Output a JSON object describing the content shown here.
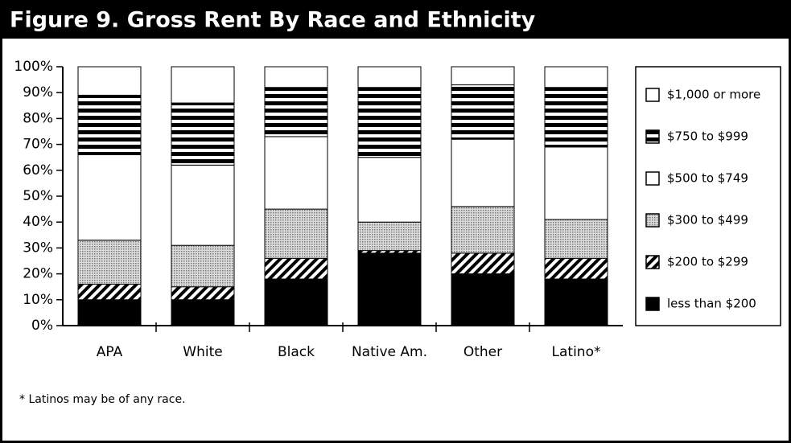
{
  "chart_data": {
    "type": "stacked_bar",
    "title": "Figure 9. Gross Rent By Race and Ethnicity",
    "categories": [
      "APA",
      "White",
      "Black",
      "Native Am.",
      "Other",
      "Latino*"
    ],
    "series": [
      {
        "name": "less than $200",
        "color": "#000000",
        "pattern": "solid",
        "values": [
          10,
          10,
          18,
          28,
          20,
          18
        ]
      },
      {
        "name": "$200 to $299",
        "color": "#000000",
        "pattern": "hatch",
        "values": [
          6,
          5,
          8,
          1,
          8,
          8
        ]
      },
      {
        "name": "$300 to $499",
        "color": "#bdbdbd",
        "pattern": "dots",
        "values": [
          17,
          16,
          19,
          11,
          18,
          15
        ]
      },
      {
        "name": "$500 to $749",
        "color": "#ffffff",
        "pattern": "solid",
        "values": [
          33,
          31,
          28,
          25,
          26,
          28
        ]
      },
      {
        "name": "$750 to $999",
        "color": "#000000",
        "pattern": "stripes",
        "values": [
          23,
          24,
          19,
          27,
          21,
          23
        ]
      },
      {
        "name": "$1,000 or more",
        "color": "#ffffff",
        "pattern": "solid",
        "values": [
          11,
          14,
          8,
          8,
          7,
          8
        ]
      }
    ],
    "ylim": [
      0,
      100
    ],
    "yticks": [
      {
        "value": 0,
        "label": "0%"
      },
      {
        "value": 10,
        "label": "10%"
      },
      {
        "value": 20,
        "label": "20%"
      },
      {
        "value": 30,
        "label": "30%"
      },
      {
        "value": 40,
        "label": "40%"
      },
      {
        "value": 50,
        "label": "50%"
      },
      {
        "value": 60,
        "label": "60%"
      },
      {
        "value": 70,
        "label": "70%"
      },
      {
        "value": 80,
        "label": "80%"
      },
      {
        "value": 90,
        "label": "90%"
      },
      {
        "value": 100,
        "label": "100%"
      }
    ],
    "legend": "right",
    "footnote": "* Latinos may be of any race."
  }
}
